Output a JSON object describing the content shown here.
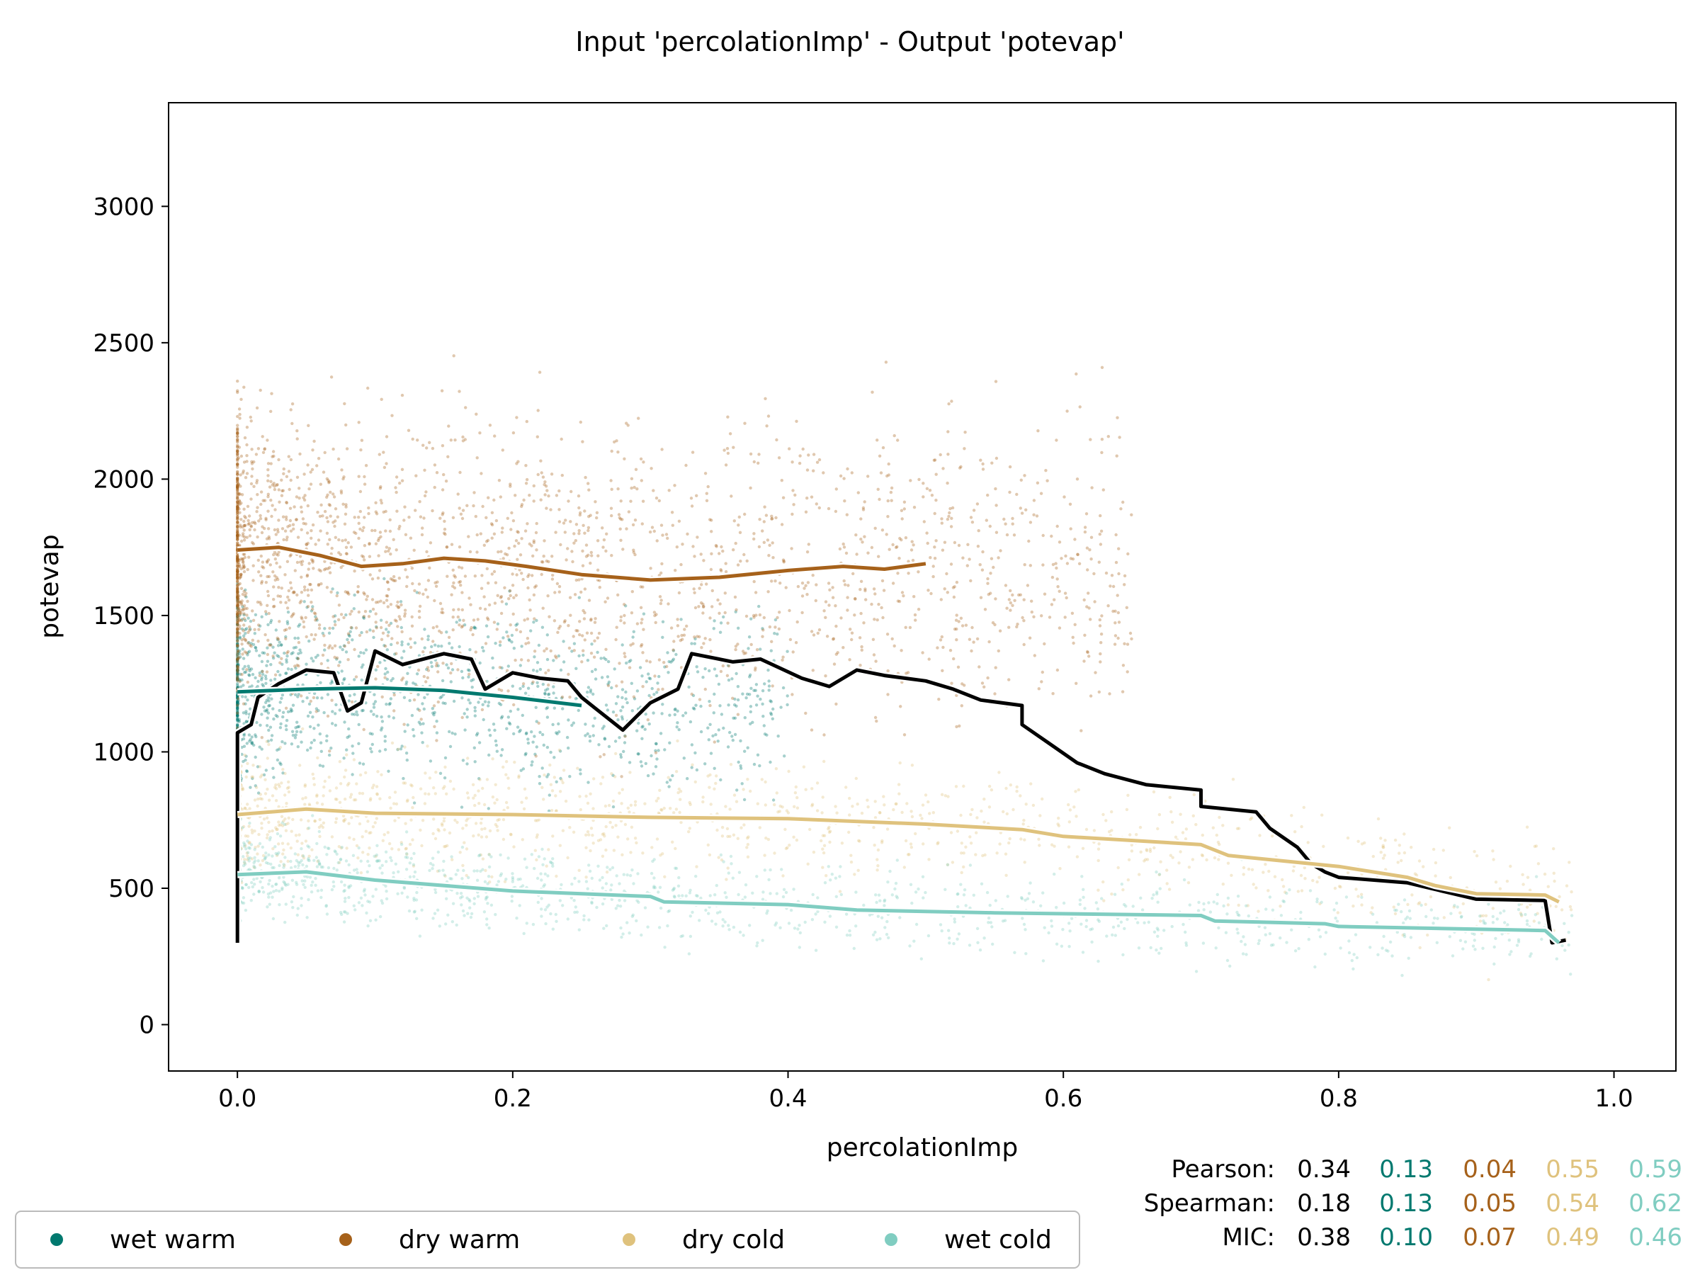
{
  "chart_data": {
    "type": "scatter",
    "title": "Input 'percolationImp' - Output 'potevap'",
    "xlabel": "percolationImp",
    "ylabel": "potevap",
    "xlim": [
      -0.05,
      1.045
    ],
    "ylim": [
      -170,
      3380
    ],
    "x_ticks": [
      0.0,
      0.2,
      0.4,
      0.6,
      0.8,
      1.0
    ],
    "x_tick_labels": [
      "0.0",
      "0.2",
      "0.4",
      "0.6",
      "0.8",
      "1.0"
    ],
    "y_ticks": [
      0,
      500,
      1000,
      1500,
      2000,
      2500,
      3000
    ],
    "y_tick_labels": [
      "0",
      "500",
      "1000",
      "1500",
      "2000",
      "2500",
      "3000"
    ],
    "grid": false,
    "legend_position": "bottom-left, outside plot",
    "series": [
      {
        "name": "wet warm",
        "color": "#01796f",
        "trend": [
          [
            0.0,
            1220
          ],
          [
            0.05,
            1230
          ],
          [
            0.1,
            1235
          ],
          [
            0.15,
            1225
          ],
          [
            0.2,
            1200
          ],
          [
            0.25,
            1170
          ]
        ]
      },
      {
        "name": "dry warm",
        "color": "#a6611a",
        "trend": [
          [
            0.0,
            1740
          ],
          [
            0.03,
            1750
          ],
          [
            0.06,
            1720
          ],
          [
            0.09,
            1680
          ],
          [
            0.12,
            1690
          ],
          [
            0.15,
            1710
          ],
          [
            0.18,
            1700
          ],
          [
            0.21,
            1680
          ],
          [
            0.25,
            1650
          ],
          [
            0.3,
            1630
          ],
          [
            0.35,
            1640
          ],
          [
            0.4,
            1665
          ],
          [
            0.44,
            1680
          ],
          [
            0.47,
            1670
          ],
          [
            0.5,
            1690
          ]
        ]
      },
      {
        "name": "dry cold",
        "color": "#dfc27d",
        "trend": [
          [
            0.0,
            770
          ],
          [
            0.05,
            790
          ],
          [
            0.1,
            775
          ],
          [
            0.2,
            770
          ],
          [
            0.3,
            760
          ],
          [
            0.4,
            755
          ],
          [
            0.5,
            735
          ],
          [
            0.57,
            715
          ],
          [
            0.6,
            690
          ],
          [
            0.7,
            660
          ],
          [
            0.72,
            620
          ],
          [
            0.8,
            580
          ],
          [
            0.85,
            540
          ],
          [
            0.87,
            510
          ],
          [
            0.9,
            480
          ],
          [
            0.95,
            475
          ],
          [
            0.96,
            450
          ]
        ]
      },
      {
        "name": "wet cold",
        "color": "#80cdc1",
        "trend": [
          [
            0.0,
            550
          ],
          [
            0.05,
            560
          ],
          [
            0.1,
            530
          ],
          [
            0.2,
            490
          ],
          [
            0.3,
            470
          ],
          [
            0.31,
            450
          ],
          [
            0.4,
            440
          ],
          [
            0.45,
            420
          ],
          [
            0.55,
            410
          ],
          [
            0.7,
            400
          ],
          [
            0.71,
            380
          ],
          [
            0.79,
            370
          ],
          [
            0.8,
            360
          ],
          [
            0.9,
            350
          ],
          [
            0.95,
            345
          ],
          [
            0.96,
            300
          ]
        ]
      }
    ],
    "overall_trend": {
      "color": "#000000",
      "points": [
        [
          0.0,
          300
        ],
        [
          0.0,
          1070
        ],
        [
          0.01,
          1100
        ],
        [
          0.015,
          1200
        ],
        [
          0.03,
          1250
        ],
        [
          0.05,
          1300
        ],
        [
          0.07,
          1290
        ],
        [
          0.08,
          1150
        ],
        [
          0.09,
          1180
        ],
        [
          0.1,
          1370
        ],
        [
          0.12,
          1320
        ],
        [
          0.15,
          1360
        ],
        [
          0.17,
          1340
        ],
        [
          0.18,
          1230
        ],
        [
          0.2,
          1290
        ],
        [
          0.22,
          1270
        ],
        [
          0.24,
          1260
        ],
        [
          0.25,
          1200
        ],
        [
          0.26,
          1160
        ],
        [
          0.28,
          1080
        ],
        [
          0.29,
          1130
        ],
        [
          0.3,
          1180
        ],
        [
          0.32,
          1230
        ],
        [
          0.33,
          1360
        ],
        [
          0.36,
          1330
        ],
        [
          0.38,
          1340
        ],
        [
          0.41,
          1270
        ],
        [
          0.43,
          1240
        ],
        [
          0.45,
          1300
        ],
        [
          0.47,
          1280
        ],
        [
          0.5,
          1260
        ],
        [
          0.52,
          1230
        ],
        [
          0.54,
          1190
        ],
        [
          0.57,
          1170
        ],
        [
          0.57,
          1100
        ],
        [
          0.59,
          1030
        ],
        [
          0.61,
          960
        ],
        [
          0.63,
          920
        ],
        [
          0.66,
          880
        ],
        [
          0.7,
          860
        ],
        [
          0.7,
          800
        ],
        [
          0.74,
          780
        ],
        [
          0.75,
          720
        ],
        [
          0.77,
          650
        ],
        [
          0.78,
          590
        ],
        [
          0.79,
          560
        ],
        [
          0.8,
          540
        ],
        [
          0.85,
          520
        ],
        [
          0.9,
          460
        ],
        [
          0.95,
          455
        ],
        [
          0.955,
          300
        ],
        [
          0.965,
          310
        ]
      ]
    },
    "stats": {
      "Pearson": {
        "label": "Pearson:",
        "values": [
          "0.34",
          "0.13",
          "0.04",
          "0.55",
          "0.59"
        ]
      },
      "Spearman": {
        "label": "Spearman:",
        "values": [
          "0.18",
          "0.13",
          "0.05",
          "0.54",
          "0.62"
        ]
      },
      "MIC": {
        "label": "MIC:",
        "values": [
          "0.38",
          "0.10",
          "0.07",
          "0.49",
          "0.46"
        ]
      }
    },
    "stats_colors": [
      "#000000",
      "#01796f",
      "#a6611a",
      "#dfc27d",
      "#80cdc1"
    ]
  }
}
